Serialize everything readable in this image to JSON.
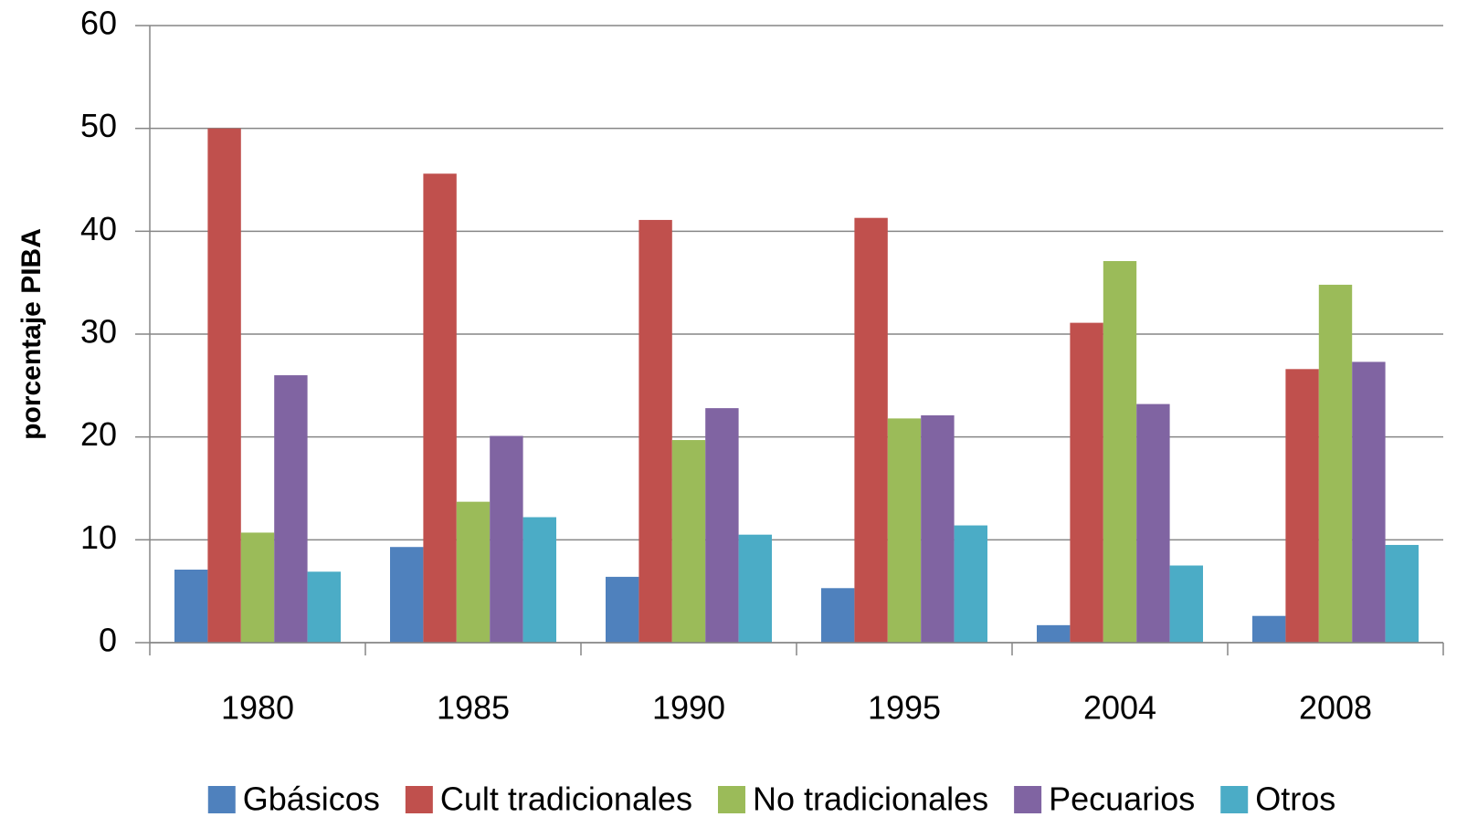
{
  "chart_data": {
    "type": "bar",
    "y_label": "porcentaje PIBA",
    "categories": [
      "1980",
      "1985",
      "1990",
      "1995",
      "2004",
      "2008"
    ],
    "series": [
      {
        "name": "Gbásicos",
        "color": "#4f81bd",
        "values": [
          7.1,
          9.3,
          6.4,
          5.3,
          1.7,
          2.6
        ]
      },
      {
        "name": "Cult tradicionales",
        "color": "#c0504d",
        "values": [
          50,
          45.6,
          41.1,
          41.3,
          31.1,
          26.6
        ]
      },
      {
        "name": "No tradicionales",
        "color": "#9bbb59",
        "values": [
          10.7,
          13.7,
          19.7,
          21.8,
          37.1,
          34.8
        ]
      },
      {
        "name": "Pecuarios",
        "color": "#8064a2",
        "values": [
          26,
          20.1,
          22.8,
          22.1,
          23.2,
          27.3
        ]
      },
      {
        "name": "Otros",
        "color": "#4bacc6",
        "values": [
          6.9,
          12.2,
          10.5,
          11.4,
          7.5,
          9.5
        ]
      }
    ],
    "ylim": [
      0,
      60
    ],
    "yticks": [
      0,
      10,
      20,
      30,
      40,
      50,
      60
    ],
    "grid": true,
    "legend": "bottom"
  }
}
